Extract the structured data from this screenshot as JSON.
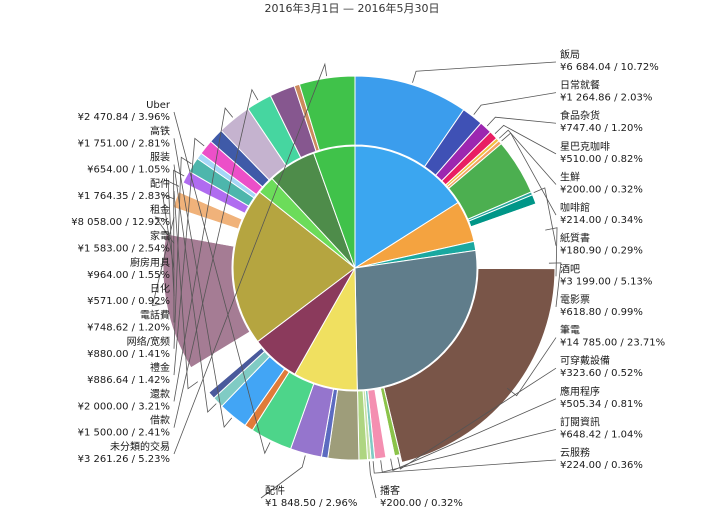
{
  "chart_data": {
    "type": "pie",
    "subtype": "sunburst",
    "title": "2016年3月1日 — 2016年5月30日",
    "outer_ring": [
      {
        "name": "飯局",
        "amount": "¥6 684.04",
        "pct": 10.72,
        "color": "#3b9ded",
        "side": "right"
      },
      {
        "name": "日常就餐",
        "amount": "¥1 264.86",
        "pct": 2.03,
        "color": "#3f51b5",
        "side": "right"
      },
      {
        "name": "食品杂货",
        "amount": "¥747.40",
        "pct": 1.2,
        "color": "#9c27b0",
        "side": "right"
      },
      {
        "name": "星巴克咖啡",
        "amount": "¥510.00",
        "pct": 0.82,
        "color": "#e91e63",
        "side": "right"
      },
      {
        "name": "生鮮",
        "amount": "¥200.00",
        "pct": 0.32,
        "color": "#f0c040",
        "side": "right"
      },
      {
        "name": "咖啡館",
        "amount": "¥214.00",
        "pct": 0.34,
        "color": "#f4a261",
        "side": "right"
      },
      {
        "name": "",
        "amount": "",
        "pct": 5.29,
        "color": "#4caf50",
        "side": "none"
      },
      {
        "name": "紙質書",
        "amount": "¥180.90",
        "pct": 0.29,
        "color": "#26a69a",
        "side": "right"
      },
      {
        "name": "",
        "amount": "",
        "pct": 0.9,
        "color": "#009688",
        "side": "none"
      },
      {
        "name": "酒吧",
        "amount": "¥3 199.00",
        "pct": 5.13,
        "color": "#ffffff",
        "side": "right"
      },
      {
        "name": "電影票",
        "amount": "¥618.80",
        "pct": 0.99,
        "color": "#ffffff",
        "side": "right"
      },
      {
        "name": "筆電",
        "amount": "¥14 785.00",
        "pct": 23.71,
        "color": "#795548",
        "side": "right"
      },
      {
        "name": "可穿戴設備",
        "amount": "¥323.60",
        "pct": 0.52,
        "color": "#8bc34a",
        "side": "right"
      },
      {
        "name": "應用程序",
        "amount": "¥505.34",
        "pct": 0.81,
        "color": "#ffffff",
        "side": "right"
      },
      {
        "name": "訂閱資訊",
        "amount": "¥648.42",
        "pct": 1.04,
        "color": "#f48fb1",
        "side": "right"
      },
      {
        "name": "云服務",
        "amount": "¥224.00",
        "pct": 0.36,
        "color": "#80cbc4",
        "side": "right"
      },
      {
        "name": "播客",
        "amount": "¥200.00",
        "pct": 0.32,
        "color": "#c5e1a5",
        "side": "bottom"
      },
      {
        "name": "",
        "amount": "",
        "pct": 0.8,
        "color": "#aed581",
        "side": "none"
      },
      {
        "name": "",
        "amount": "",
        "pct": 2.9,
        "color": "#9e9d7a",
        "side": "none"
      },
      {
        "name": "",
        "amount": "",
        "pct": 0.6,
        "color": "#5c6bc0",
        "side": "none"
      },
      {
        "name": "配件",
        "amount": "¥1 848.50",
        "pct": 2.96,
        "color": "#9575cd",
        "side": "bottom"
      },
      {
        "name": "Uber",
        "amount": "¥2 470.84",
        "pct": 3.96,
        "color": "#4dd58a",
        "side": "left"
      },
      {
        "name": "",
        "amount": "",
        "pct": 0.8,
        "color": "#e07b39",
        "side": "none"
      },
      {
        "name": "高铁",
        "amount": "¥1 751.00",
        "pct": 2.81,
        "color": "#42a5f5",
        "side": "left"
      },
      {
        "name": "服装",
        "amount": "¥654.00",
        "pct": 1.05,
        "color": "#80cbc4",
        "side": "left"
      },
      {
        "name": "",
        "amount": "",
        "pct": 0.7,
        "color": "#4a5a9c",
        "side": "none"
      },
      {
        "name": "配件",
        "amount": "¥1 764.35",
        "pct": 2.83,
        "color": "#ffffff",
        "side": "left"
      },
      {
        "name": "租金",
        "amount": "¥8 058.00",
        "pct": 12.92,
        "color": "#a57c94",
        "side": "left"
      },
      {
        "name": "家電",
        "amount": "¥1 583.00",
        "pct": 2.54,
        "color": "#ffffff",
        "side": "left"
      },
      {
        "name": "廚房用具",
        "amount": "¥964.00",
        "pct": 1.55,
        "color": "#f0b27a",
        "side": "left"
      },
      {
        "name": "日化",
        "amount": "¥571.00",
        "pct": 0.92,
        "color": "#ffffff",
        "side": "left"
      },
      {
        "name": "電話費",
        "amount": "¥748.62",
        "pct": 1.2,
        "color": "#b06cf0",
        "side": "left"
      },
      {
        "name": "网络/宽频",
        "amount": "¥880.00",
        "pct": 1.41,
        "color": "#4db6ac",
        "side": "left"
      },
      {
        "name": "",
        "amount": "",
        "pct": 0.6,
        "color": "#a5d6f7",
        "side": "none"
      },
      {
        "name": "禮金",
        "amount": "¥886.64",
        "pct": 1.42,
        "color": "#ec4fc8",
        "side": "left"
      },
      {
        "name": "",
        "amount": "",
        "pct": 1.4,
        "color": "#3f5aa8",
        "side": "none"
      },
      {
        "name": "還款",
        "amount": "¥2 000.00",
        "pct": 3.21,
        "color": "#c5b3cf",
        "side": "left"
      },
      {
        "name": "借款",
        "amount": "¥1 500.00",
        "pct": 2.41,
        "color": "#46d6a0",
        "side": "left"
      },
      {
        "name": "",
        "amount": "",
        "pct": 2.4,
        "color": "#86578f",
        "side": "none"
      },
      {
        "name": "",
        "amount": "",
        "pct": 0.5,
        "color": "#cc8a5c",
        "side": "none"
      },
      {
        "name": "未分類的交易",
        "amount": "¥3 261.26",
        "pct": 5.23,
        "color": "#40c24a",
        "side": "left"
      }
    ],
    "inner_ring": [
      {
        "pct": 16.0,
        "color": "#3ba6f0"
      },
      {
        "pct": 5.5,
        "color": "#f4a340"
      },
      {
        "pct": 1.2,
        "color": "#1aa8a0"
      },
      {
        "pct": 27.0,
        "color": "#607d8b"
      },
      {
        "pct": 8.5,
        "color": "#f0e060"
      },
      {
        "pct": 6.5,
        "color": "#8b3a5c"
      },
      {
        "pct": 21.0,
        "color": "#b5a540"
      },
      {
        "pct": 2.4,
        "color": "#6cdc5a"
      },
      {
        "pct": 6.4,
        "color": "#4e8c4a"
      },
      {
        "pct": 5.5,
        "color": "#40c24a"
      }
    ]
  }
}
